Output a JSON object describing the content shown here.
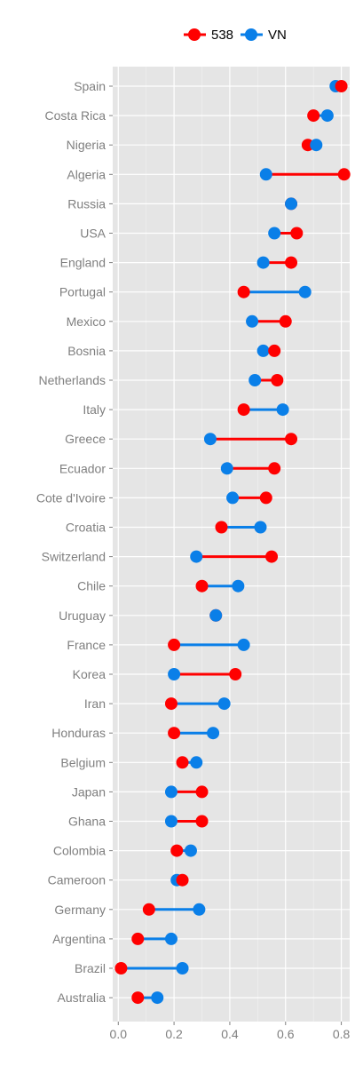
{
  "chart_data": {
    "type": "dumbbell",
    "title": "",
    "xlabel": "",
    "ylabel": "",
    "xlim": [
      -0.02,
      0.83
    ],
    "x_ticks": [
      "0.0",
      "0.2",
      "0.4",
      "0.6",
      "0.8"
    ],
    "x_tick_values": [
      0.0,
      0.2,
      0.4,
      0.6,
      0.8
    ],
    "grid": true,
    "legend_position": "top",
    "series": [
      {
        "name": "538",
        "color": "#ff0000"
      },
      {
        "name": "VN",
        "color": "#0a7fe8"
      }
    ],
    "categories": [
      "Spain",
      "Costa Rica",
      "Nigeria",
      "Algeria",
      "Russia",
      "USA",
      "England",
      "Portugal",
      "Mexico",
      "Bosnia",
      "Netherlands",
      "Italy",
      "Greece",
      "Ecuador",
      "Cote d'Ivoire",
      "Croatia",
      "Switzerland",
      "Chile",
      "Uruguay",
      "France",
      "Korea",
      "Iran",
      "Honduras",
      "Belgium",
      "Japan",
      "Ghana",
      "Colombia",
      "Cameroon",
      "Germany",
      "Argentina",
      "Brazil",
      "Australia"
    ],
    "values_538": [
      0.8,
      0.7,
      0.68,
      0.81,
      0.62,
      0.64,
      0.62,
      0.45,
      0.6,
      0.56,
      0.57,
      0.45,
      0.62,
      0.56,
      0.53,
      0.37,
      0.55,
      0.3,
      0.35,
      0.2,
      0.42,
      0.19,
      0.2,
      0.23,
      0.3,
      0.3,
      0.21,
      0.23,
      0.11,
      0.07,
      0.01,
      0.07
    ],
    "values_VN": [
      0.78,
      0.75,
      0.71,
      0.53,
      0.62,
      0.56,
      0.52,
      0.67,
      0.48,
      0.52,
      0.49,
      0.59,
      0.33,
      0.39,
      0.41,
      0.51,
      0.28,
      0.43,
      0.35,
      0.45,
      0.2,
      0.38,
      0.34,
      0.28,
      0.19,
      0.19,
      0.26,
      0.21,
      0.29,
      0.19,
      0.23,
      0.14
    ]
  }
}
